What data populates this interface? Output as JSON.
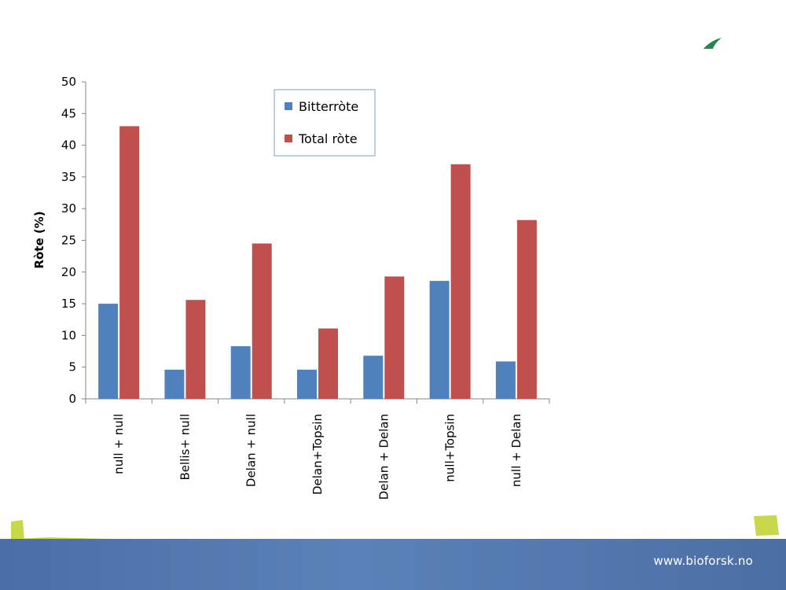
{
  "footer": {
    "url": "www.bioforsk.no"
  },
  "colors": {
    "bitterrote": "#4f81bd",
    "total_rote": "#c0504d",
    "footer_blue": "#4f74ab",
    "accent_green": "#c8d84a",
    "logo_green": "#1e8a4c"
  },
  "chart_data": {
    "type": "bar",
    "categories": [
      "null + null",
      "Bellis+ null",
      "Delan + null",
      "Delan+Topsin",
      "Delan + Delan",
      "null+Topsin",
      "null + Delan"
    ],
    "series": [
      {
        "name": "Bitterròte",
        "values": [
          15,
          4.6,
          8.3,
          4.6,
          6.8,
          18.6,
          5.9
        ]
      },
      {
        "name": "Total ròte",
        "values": [
          43,
          15.6,
          24.5,
          11.1,
          19.3,
          37,
          28.2
        ]
      }
    ],
    "title": "",
    "xlabel": "",
    "ylabel": "Ròte (%)",
    "ylim": [
      0,
      50
    ],
    "yticks": [
      0,
      5,
      10,
      15,
      20,
      25,
      30,
      35,
      40,
      45,
      50
    ],
    "grid": false,
    "legend_position": "top-center"
  }
}
